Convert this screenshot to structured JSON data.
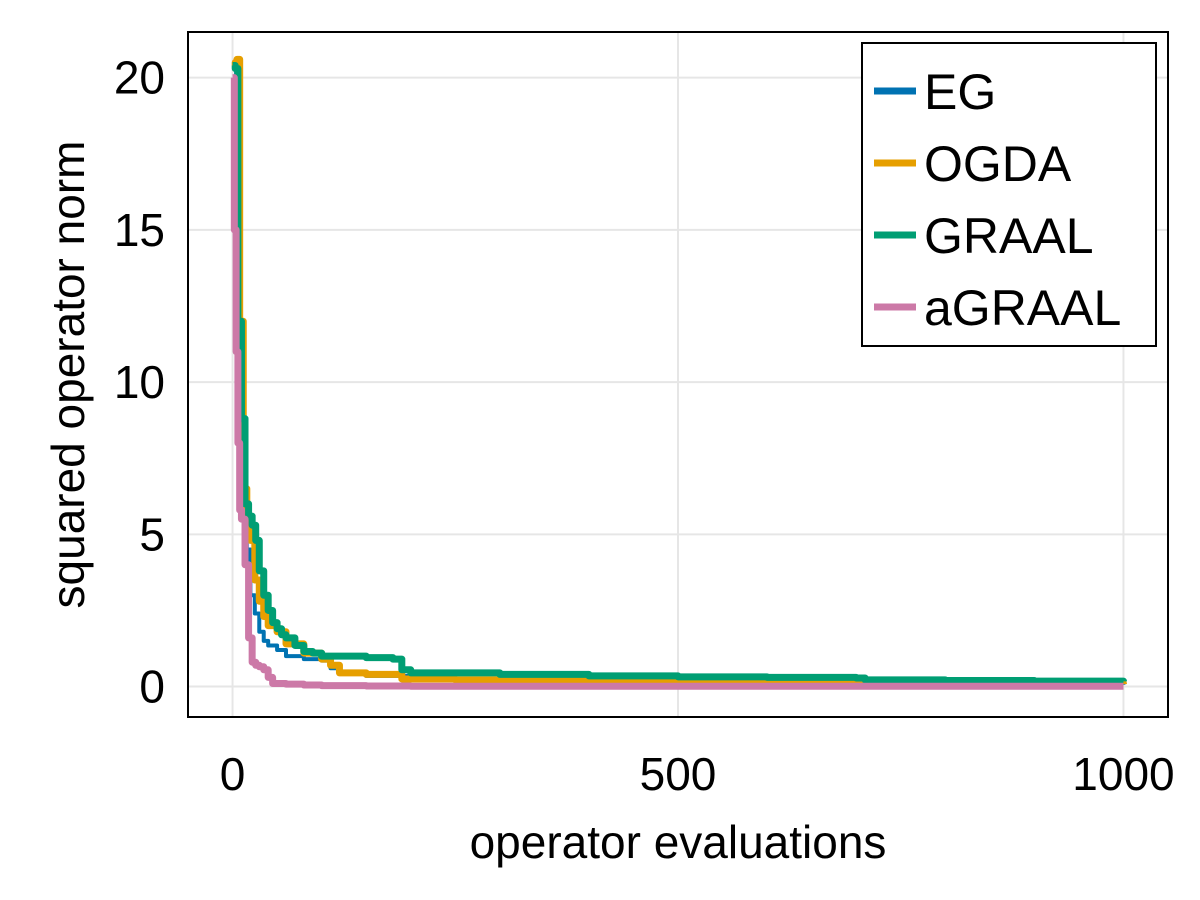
{
  "chart_data": {
    "type": "line",
    "title": "",
    "xlabel": "operator evaluations",
    "ylabel": "squared operator norm",
    "xlim": [
      -50,
      1050
    ],
    "ylim": [
      -1,
      21.5
    ],
    "x_ticks": [
      0,
      500,
      1000
    ],
    "x_tick_labels": [
      "0",
      "500",
      "1000"
    ],
    "y_ticks": [
      0,
      5,
      10,
      15,
      20
    ],
    "y_tick_labels": [
      "0",
      "5",
      "10",
      "15",
      "20"
    ],
    "grid": true,
    "legend_position": "top-right",
    "series": [
      {
        "name": "EG",
        "color": "#0072B2",
        "x": [
          0,
          4,
          8,
          12,
          16,
          20,
          25,
          30,
          35,
          40,
          50,
          60,
          80,
          100,
          110,
          120,
          150,
          200,
          250,
          300,
          400,
          450,
          600,
          800,
          1000
        ],
        "y": [
          20.4,
          12.0,
          8.0,
          6.2,
          4.5,
          3.0,
          2.4,
          1.8,
          1.5,
          1.35,
          1.2,
          1.0,
          0.9,
          0.85,
          0.6,
          0.45,
          0.35,
          0.3,
          0.25,
          0.22,
          0.15,
          0.12,
          0.1,
          0.08,
          0.06
        ]
      },
      {
        "name": "OGDA",
        "color": "#E69F00",
        "x": [
          0,
          3,
          5,
          8,
          12,
          16,
          20,
          25,
          30,
          35,
          40,
          50,
          60,
          80,
          100,
          110,
          120,
          150,
          180,
          190,
          250,
          300,
          450,
          600,
          800,
          1000
        ],
        "y": [
          20.4,
          20.5,
          20.6,
          12.0,
          6.5,
          5.5,
          4.8,
          3.5,
          2.8,
          2.3,
          2.0,
          1.8,
          1.4,
          1.1,
          0.9,
          0.7,
          0.45,
          0.4,
          0.4,
          0.25,
          0.22,
          0.2,
          0.15,
          0.12,
          0.1,
          0.08
        ]
      },
      {
        "name": "GRAAL",
        "color": "#009E73",
        "x": [
          0,
          3,
          6,
          10,
          14,
          18,
          22,
          26,
          30,
          35,
          40,
          45,
          50,
          55,
          60,
          70,
          80,
          90,
          100,
          150,
          180,
          190,
          200,
          300,
          400,
          500,
          600,
          700,
          710,
          800,
          900,
          1000
        ],
        "y": [
          20.4,
          20.3,
          12.0,
          8.8,
          6.0,
          5.6,
          5.3,
          4.8,
          3.8,
          3.0,
          2.5,
          2.1,
          1.9,
          1.7,
          1.6,
          1.35,
          1.15,
          1.1,
          1.0,
          0.95,
          0.9,
          0.55,
          0.45,
          0.4,
          0.35,
          0.32,
          0.3,
          0.28,
          0.22,
          0.2,
          0.18,
          0.17
        ]
      },
      {
        "name": "aGRAAL",
        "color": "#CC79A7",
        "x": [
          0,
          2,
          4,
          6,
          8,
          10,
          14,
          18,
          22,
          26,
          30,
          35,
          40,
          45,
          60,
          80,
          100,
          150,
          200,
          300,
          500,
          700,
          1000
        ],
        "y": [
          20.0,
          15.0,
          11.0,
          8.0,
          5.8,
          5.5,
          4.0,
          1.6,
          0.8,
          0.7,
          0.65,
          0.55,
          0.3,
          0.1,
          0.08,
          0.05,
          0.03,
          0.02,
          0.01,
          0.01,
          0.01,
          0.01,
          0.01
        ]
      }
    ]
  }
}
